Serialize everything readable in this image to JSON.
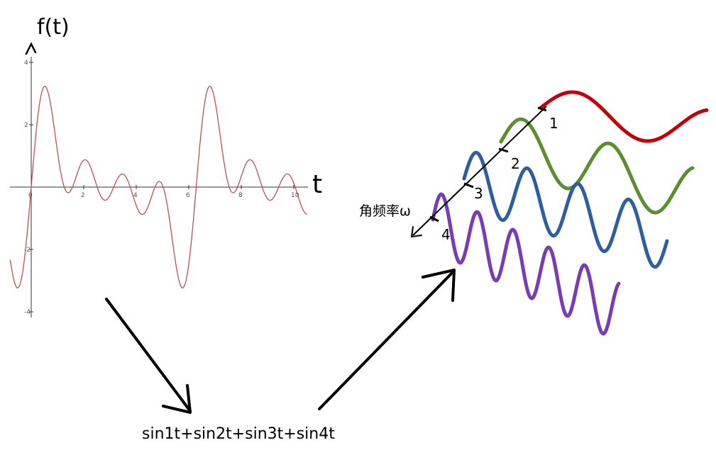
{
  "left_graph": {
    "y_axis_label": "f(t)",
    "x_axis_label": "t",
    "x_ticks": [
      "0",
      "2",
      "4",
      "6",
      "8",
      "10"
    ],
    "y_ticks": [
      "4",
      "2",
      "-2",
      "-4"
    ],
    "curve_color": "#c0504d"
  },
  "right_diagram": {
    "axis_label": "角频率ω",
    "components": [
      {
        "label": "1",
        "color": "#c0000c",
        "frequency": 1
      },
      {
        "label": "2",
        "color": "#5b8f2e",
        "frequency": 2
      },
      {
        "label": "3",
        "color": "#2d5fa0",
        "frequency": 3
      },
      {
        "label": "4",
        "color": "#7a3cb4",
        "frequency": 4
      }
    ]
  },
  "formula": "sin1t+sin2t+sin3t+sin4t",
  "chart_data": {
    "type": "line",
    "xlabel": "t",
    "ylabel": "f(t)",
    "xlim": [
      -1,
      10.5
    ],
    "ylim": [
      -4,
      4
    ],
    "x_ticks": [
      0,
      2,
      4,
      6,
      8,
      10
    ],
    "y_ticks": [
      -4,
      -2,
      2,
      4
    ],
    "series": [
      {
        "function": "sin1t+sin2t+sin3t+sin4t",
        "color": "#c0504d"
      }
    ]
  }
}
